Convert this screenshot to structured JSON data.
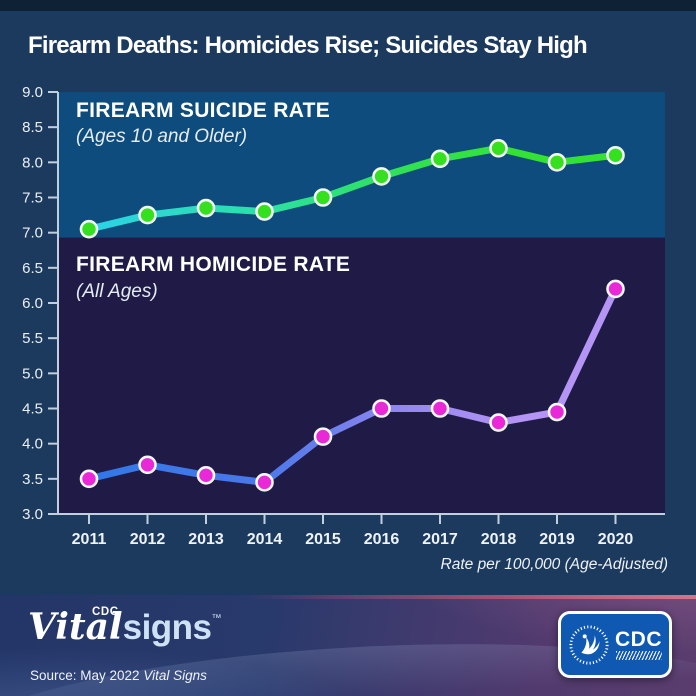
{
  "header": {
    "title": "Firearm Deaths: Homicides Rise; Suicides Stay High"
  },
  "suicide_panel": {
    "title": "FIREARM SUICIDE RATE",
    "subtitle": "(Ages 10 and Older)"
  },
  "homicide_panel": {
    "title": "FIREARM HOMICIDE RATE",
    "subtitle": "(All Ages)"
  },
  "axis_note": "Rate per 100,000 (Age-Adjusted)",
  "footer": {
    "logo_vital": "Vital",
    "logo_cdc_small": "CDC",
    "logo_signs": "signs",
    "logo_tm": "™",
    "source_prefix": "Source: May 2022 ",
    "source_title": "Vital Signs",
    "cdc_badge_label": "CDC"
  },
  "colors": {
    "page_background": "#1c3a5e",
    "top_strip": "#0f2134",
    "suicide_panel_bg": "#0d4c7c",
    "homicide_panel_bg": "#201a46",
    "axis": "#c2cfdd",
    "tick_label": "#e9eff6",
    "year_label": "#eef3f8",
    "suicide_marker": "#35e01e",
    "homicide_marker": "#e928d8",
    "marker_ring": "#f2f8f4",
    "suicide_line_gradient": [
      "#2bd3e8",
      "#2ce0a6",
      "#30e154",
      "#34e234"
    ],
    "homicide_line_gradient": [
      "#3178e8",
      "#4a78ea",
      "#9487f0",
      "#b494f4"
    ],
    "cdc_badge_blue": "#1059b3"
  },
  "chart_data": {
    "type": "line",
    "categories": [
      "2011",
      "2012",
      "2013",
      "2014",
      "2015",
      "2016",
      "2017",
      "2018",
      "2019",
      "2020"
    ],
    "series": [
      {
        "name": "Firearm suicide rate (Ages 10 and Older)",
        "values": [
          7.05,
          7.25,
          7.35,
          7.3,
          7.5,
          7.8,
          8.05,
          8.2,
          8.0,
          8.1
        ]
      },
      {
        "name": "Firearm homicide rate (All Ages)",
        "values": [
          3.5,
          3.7,
          3.55,
          3.45,
          4.1,
          4.5,
          4.5,
          4.3,
          4.45,
          6.2
        ]
      }
    ],
    "ylim": [
      3.0,
      9.0
    ],
    "yticks": [
      "9.0",
      "8.5",
      "8.0",
      "7.5",
      "7.0",
      "6.5",
      "6.0",
      "5.5",
      "5.0",
      "4.5",
      "4.0",
      "3.5",
      "3.0"
    ],
    "ytick_step": 0.5,
    "xlabel": "",
    "ylabel": "Rate per 100,000 (Age-Adjusted)",
    "grid": false,
    "legend_position": "none"
  }
}
